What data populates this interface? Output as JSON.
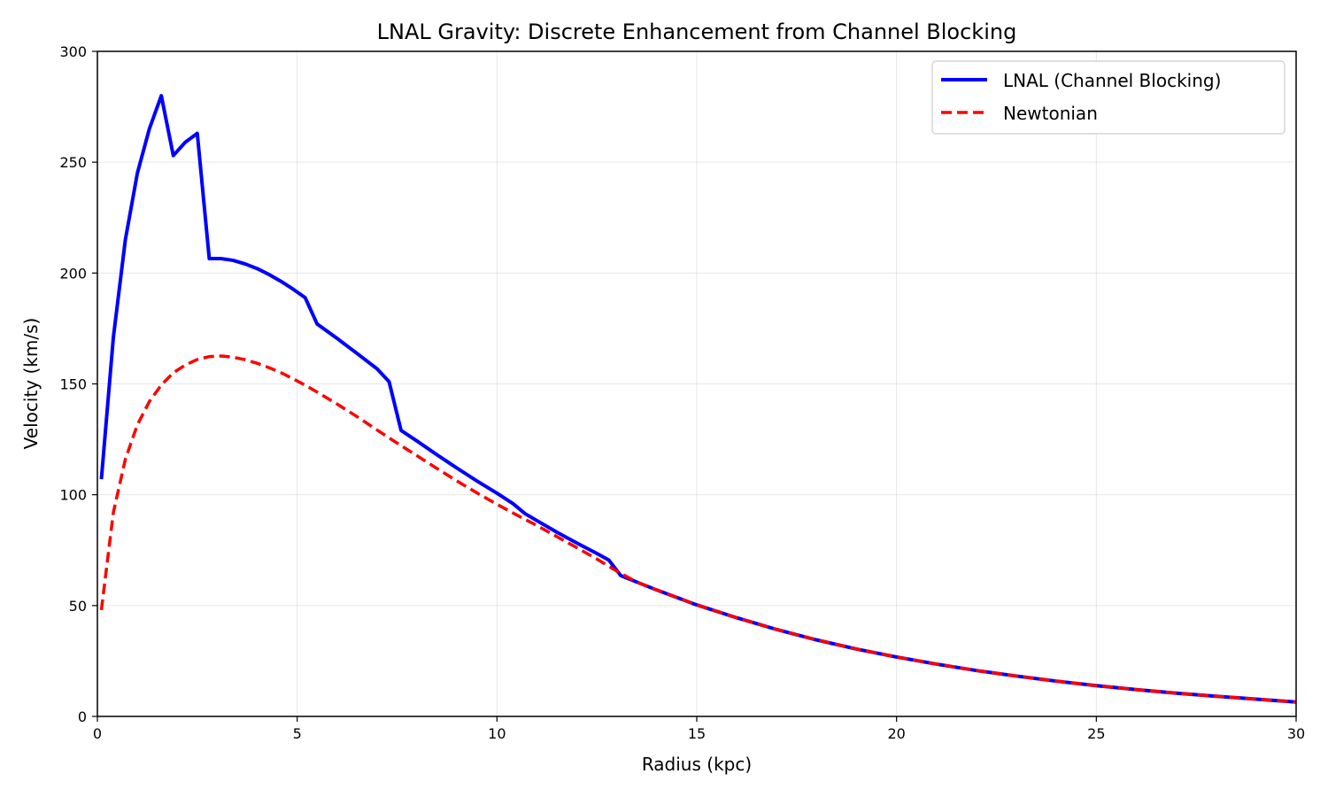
{
  "chart_data": {
    "type": "line",
    "title": "LNAL Gravity: Discrete Enhancement from Channel Blocking",
    "xlabel": "Radius (kpc)",
    "ylabel": "Velocity (km/s)",
    "xlim": [
      0,
      30
    ],
    "ylim": [
      0,
      300
    ],
    "xticks": [
      0,
      5,
      10,
      15,
      20,
      25,
      30
    ],
    "yticks": [
      0,
      50,
      100,
      150,
      200,
      250,
      300
    ],
    "xtick_labels": [
      "0",
      "5",
      "10",
      "15",
      "20",
      "25",
      "30"
    ],
    "ytick_labels": [
      "0",
      "50",
      "100",
      "150",
      "200",
      "250",
      "300"
    ],
    "grid": true,
    "legend_position": "top-right",
    "series": [
      {
        "name": "LNAL (Channel Blocking)",
        "color": "#0000ff",
        "style": "solid",
        "points": [
          [
            0.1,
            107
          ],
          [
            0.4,
            171
          ],
          [
            0.7,
            215
          ],
          [
            1.0,
            245
          ],
          [
            1.3,
            265
          ],
          [
            1.6,
            280
          ],
          [
            1.9,
            253
          ],
          [
            2.2,
            259
          ],
          [
            2.5,
            263
          ],
          [
            2.8,
            206.5
          ],
          [
            3.1,
            206.5
          ],
          [
            3.4,
            205.7
          ],
          [
            3.7,
            204.1
          ],
          [
            4.0,
            202
          ],
          [
            4.3,
            199.3
          ],
          [
            4.6,
            196.2
          ],
          [
            4.9,
            192.7
          ],
          [
            5.2,
            188.9
          ],
          [
            5.5,
            177
          ],
          [
            6.0,
            170.5
          ],
          [
            6.5,
            163.7
          ],
          [
            7.0,
            156.8
          ],
          [
            7.3,
            151
          ],
          [
            7.6,
            129
          ],
          [
            8.0,
            124.2
          ],
          [
            8.5,
            118
          ],
          [
            9.0,
            112
          ],
          [
            9.5,
            106.2
          ],
          [
            10.0,
            100.7
          ],
          [
            10.4,
            96
          ],
          [
            10.7,
            91.5
          ],
          [
            11.0,
            88.3
          ],
          [
            11.5,
            83.1
          ],
          [
            12.0,
            78.2
          ],
          [
            12.5,
            73.5
          ],
          [
            12.8,
            70.5
          ],
          [
            13.1,
            63.5
          ],
          [
            13.5,
            60.6
          ],
          [
            14.0,
            57
          ],
          [
            15.0,
            50.3
          ],
          [
            16.0,
            44.5
          ],
          [
            17.0,
            39.2
          ],
          [
            18.0,
            34.5
          ],
          [
            19.0,
            30.4
          ],
          [
            20.0,
            26.8
          ],
          [
            21.0,
            23.6
          ],
          [
            22.0,
            20.7
          ],
          [
            23.0,
            18.2
          ],
          [
            24.0,
            15.9
          ],
          [
            25.0,
            13.9
          ],
          [
            26.0,
            12.1
          ],
          [
            27.0,
            10.5
          ],
          [
            28.0,
            9.1
          ],
          [
            29.0,
            7.8
          ],
          [
            30.0,
            6.5
          ]
        ]
      },
      {
        "name": "Newtonian",
        "color": "#ff0000",
        "style": "dashed",
        "points": [
          [
            0.1,
            48
          ],
          [
            0.4,
            92
          ],
          [
            0.7,
            116
          ],
          [
            1.0,
            131.5
          ],
          [
            1.3,
            142
          ],
          [
            1.6,
            149.5
          ],
          [
            1.9,
            155
          ],
          [
            2.2,
            158.5
          ],
          [
            2.5,
            161
          ],
          [
            2.8,
            162.3
          ],
          [
            3.1,
            162.6
          ],
          [
            3.4,
            162
          ],
          [
            3.7,
            160.9
          ],
          [
            4.0,
            159.3
          ],
          [
            4.3,
            157.3
          ],
          [
            4.6,
            155
          ],
          [
            4.9,
            152.3
          ],
          [
            5.2,
            149.4
          ],
          [
            5.5,
            146.3
          ],
          [
            6.0,
            140.9
          ],
          [
            6.5,
            135.2
          ],
          [
            7.0,
            129.2
          ],
          [
            7.5,
            123.3
          ],
          [
            8.0,
            117.6
          ],
          [
            8.5,
            111.8
          ],
          [
            9.0,
            106.2
          ],
          [
            9.5,
            100.8
          ],
          [
            10.0,
            95.7
          ],
          [
            10.5,
            90.8
          ],
          [
            11.0,
            86.1
          ],
          [
            11.5,
            81.1
          ],
          [
            12.0,
            76.1
          ],
          [
            12.5,
            71
          ],
          [
            13.0,
            65.5
          ],
          [
            13.5,
            60.6
          ],
          [
            14.0,
            57
          ],
          [
            15.0,
            50.3
          ],
          [
            16.0,
            44.5
          ],
          [
            17.0,
            39.2
          ],
          [
            18.0,
            34.5
          ],
          [
            19.0,
            30.4
          ],
          [
            20.0,
            26.8
          ],
          [
            21.0,
            23.6
          ],
          [
            22.0,
            20.7
          ],
          [
            23.0,
            18.2
          ],
          [
            24.0,
            15.9
          ],
          [
            25.0,
            13.9
          ],
          [
            26.0,
            12.1
          ],
          [
            27.0,
            10.5
          ],
          [
            28.0,
            9.1
          ],
          [
            29.0,
            7.8
          ],
          [
            30.0,
            6.5
          ]
        ]
      }
    ]
  }
}
